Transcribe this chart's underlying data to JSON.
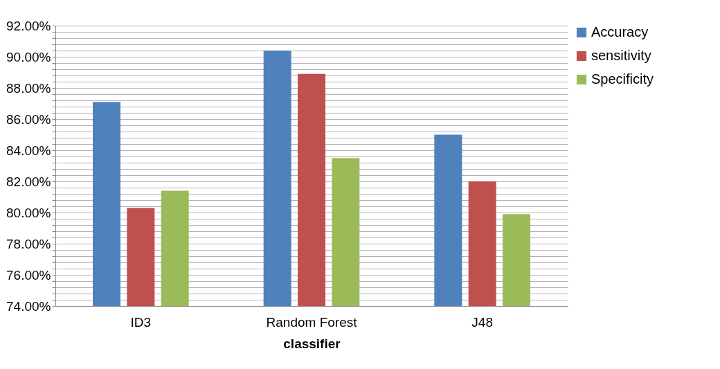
{
  "chart_data": {
    "type": "bar",
    "xlabel": "classifier",
    "categories": [
      "ID3",
      "Random Forest",
      "J48"
    ],
    "series": [
      {
        "name": "Accuracy",
        "color": "#4f81bd",
        "values": [
          87.1,
          90.4,
          85.0
        ]
      },
      {
        "name": "sensitivity",
        "color": "#c0504d",
        "values": [
          80.3,
          88.9,
          82.0
        ]
      },
      {
        "name": "Specificity",
        "color": "#9bbb59",
        "values": [
          81.4,
          83.5,
          79.9
        ]
      }
    ],
    "ylim": [
      74,
      92
    ],
    "yticks": [
      {
        "value": 74,
        "label": "74.00%"
      },
      {
        "value": 74.4,
        "label": null
      },
      {
        "value": 74.8,
        "label": null
      },
      {
        "value": 75.2,
        "label": null
      },
      {
        "value": 75.6,
        "label": null
      },
      {
        "value": 76,
        "label": "76.00%"
      },
      {
        "value": 76.4,
        "label": null
      },
      {
        "value": 76.8,
        "label": null
      },
      {
        "value": 77.2,
        "label": null
      },
      {
        "value": 77.6,
        "label": null
      },
      {
        "value": 78,
        "label": "78.00%"
      },
      {
        "value": 78.4,
        "label": null
      },
      {
        "value": 78.8,
        "label": null
      },
      {
        "value": 79.2,
        "label": null
      },
      {
        "value": 79.6,
        "label": null
      },
      {
        "value": 80,
        "label": "80.00%"
      },
      {
        "value": 80.4,
        "label": null
      },
      {
        "value": 80.8,
        "label": null
      },
      {
        "value": 81.2,
        "label": null
      },
      {
        "value": 81.6,
        "label": null
      },
      {
        "value": 82,
        "label": "82.00%"
      },
      {
        "value": 82.4,
        "label": null
      },
      {
        "value": 82.8,
        "label": null
      },
      {
        "value": 83.2,
        "label": null
      },
      {
        "value": 83.6,
        "label": null
      },
      {
        "value": 84,
        "label": "84.00%"
      },
      {
        "value": 84.4,
        "label": null
      },
      {
        "value": 84.8,
        "label": null
      },
      {
        "value": 85.2,
        "label": null
      },
      {
        "value": 85.6,
        "label": null
      },
      {
        "value": 86,
        "label": "86.00%"
      },
      {
        "value": 86.4,
        "label": null
      },
      {
        "value": 86.8,
        "label": null
      },
      {
        "value": 87.2,
        "label": null
      },
      {
        "value": 87.6,
        "label": null
      },
      {
        "value": 88,
        "label": "88.00%"
      },
      {
        "value": 88.4,
        "label": null
      },
      {
        "value": 88.8,
        "label": null
      },
      {
        "value": 89.2,
        "label": null
      },
      {
        "value": 89.6,
        "label": null
      },
      {
        "value": 90,
        "label": "90.00%"
      },
      {
        "value": 90.4,
        "label": null
      },
      {
        "value": 90.8,
        "label": null
      },
      {
        "value": 91.2,
        "label": null
      },
      {
        "value": 91.6,
        "label": null
      },
      {
        "value": 92,
        "label": "92.00%"
      }
    ],
    "grid": true,
    "legend": "right"
  }
}
